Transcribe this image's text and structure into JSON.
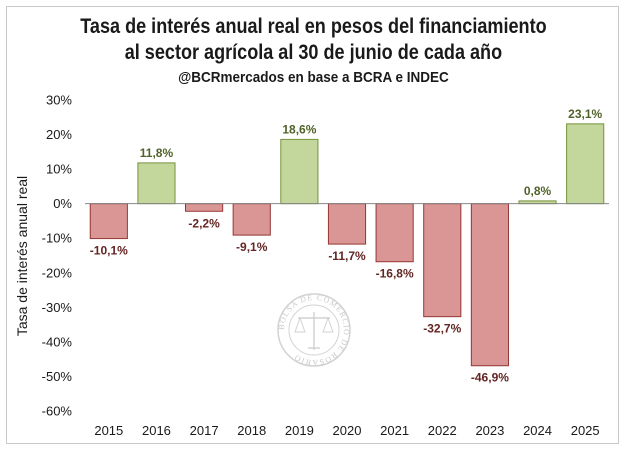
{
  "header": {
    "title_line1": "Tasa de interés anual real en pesos del financiamiento",
    "title_line2": "al sector agrícola al 30 de junio de cada año",
    "subtitle": "@BCRmercados en base a BCRA e INDEC"
  },
  "colors": {
    "positive_fill": "#c3d69b",
    "positive_stroke": "#77933c",
    "positive_label": "#4f6228",
    "negative_fill": "#d99694",
    "negative_stroke": "#953735",
    "negative_label": "#632523"
  },
  "watermark": {
    "text": "BOLSA DE COMERCIO DE ROSARIO"
  },
  "chart_data": {
    "type": "bar",
    "title": "Tasa de interés anual real en pesos del financiamiento al sector agrícola al 30 de junio de cada año",
    "subtitle": "@BCRmercados en base a BCRA e INDEC",
    "xlabel": "",
    "ylabel": "Tasa de interés anual real",
    "categories": [
      "2015",
      "2016",
      "2017",
      "2018",
      "2019",
      "2020",
      "2021",
      "2022",
      "2023",
      "2024",
      "2025"
    ],
    "values": [
      -10.1,
      11.8,
      -2.2,
      -9.1,
      18.6,
      -11.7,
      -16.8,
      -32.7,
      -46.9,
      0.8,
      23.1
    ],
    "data_labels": [
      "-10,1%",
      "11,8%",
      "-2,2%",
      "-9,1%",
      "18,6%",
      "-11,7%",
      "-16,8%",
      "-32,7%",
      "-46,9%",
      "0,8%",
      "23,1%"
    ],
    "yticks": [
      30,
      20,
      10,
      0,
      -10,
      -20,
      -30,
      -40,
      -50,
      -60
    ],
    "ytick_labels": [
      "30%",
      "20%",
      "10%",
      "0%",
      "-10%",
      "-20%",
      "-30%",
      "-40%",
      "-50%",
      "-60%"
    ],
    "ylim": [
      -60,
      30
    ],
    "grid": false,
    "legend": "none"
  }
}
